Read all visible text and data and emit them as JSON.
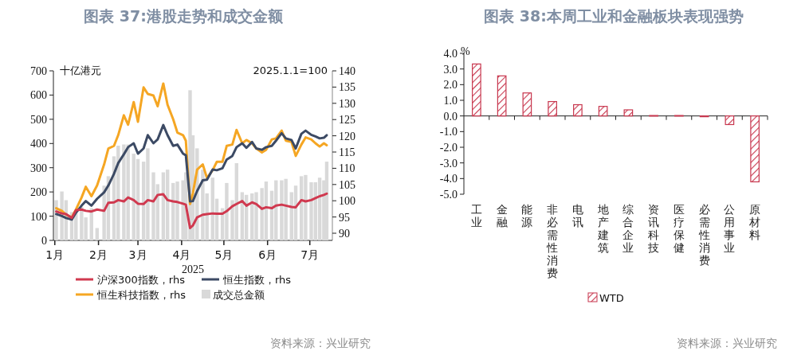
{
  "chart_data": [
    {
      "type": "line",
      "title": "图表 37:港股走势和成交金额",
      "xlabel": "2025",
      "ylabel": "十亿港元",
      "y2label": "2025.1.1=100",
      "x": [
        "2025-01-02",
        "2025-01-06",
        "2025-01-09",
        "2025-01-13",
        "2025-01-16",
        "2025-01-20",
        "2025-01-23",
        "2025-01-27",
        "2025-01-31",
        "2025-02-05",
        "2025-02-08",
        "2025-02-12",
        "2025-02-15",
        "2025-02-19",
        "2025-02-22",
        "2025-02-26",
        "2025-03-01",
        "2025-03-05",
        "2025-03-08",
        "2025-03-12",
        "2025-03-15",
        "2025-03-19",
        "2025-03-22",
        "2025-03-26",
        "2025-03-29",
        "2025-04-02",
        "2025-04-04",
        "2025-04-07",
        "2025-04-09",
        "2025-04-12",
        "2025-04-16",
        "2025-04-19",
        "2025-04-23",
        "2025-04-26",
        "2025-04-30",
        "2025-05-03",
        "2025-05-07",
        "2025-05-10",
        "2025-05-14",
        "2025-05-17",
        "2025-05-21",
        "2025-05-24",
        "2025-05-28",
        "2025-05-31",
        "2025-06-04",
        "2025-06-07",
        "2025-06-11",
        "2025-06-14",
        "2025-06-18",
        "2025-06-21",
        "2025-06-25",
        "2025-06-28",
        "2025-07-02",
        "2025-07-05",
        "2025-07-08",
        "2025-07-11",
        "2025-07-13"
      ],
      "xlim": [
        "2024-12-31",
        "2025-07-17"
      ],
      "xticks": [
        {
          "value": "2025-01-01",
          "label": "1月"
        },
        {
          "value": "2025-02-01",
          "label": "2月"
        },
        {
          "value": "2025-03-01",
          "label": "3月"
        },
        {
          "value": "2025-04-01",
          "label": "4月"
        },
        {
          "value": "2025-05-01",
          "label": "5月"
        },
        {
          "value": "2025-06-01",
          "label": "6月"
        },
        {
          "value": "2025-07-01",
          "label": "7月"
        }
      ],
      "ylim": [
        0,
        700
      ],
      "yticks": [
        0,
        100,
        200,
        300,
        400,
        500,
        600,
        700
      ],
      "y2lim": [
        87.8,
        140
      ],
      "y2ticks": [
        90,
        95,
        100,
        105,
        110,
        115,
        120,
        125,
        130,
        135,
        140
      ],
      "grid": false,
      "legend": "bottom",
      "series": [
        {
          "name": "沪深300指数，rhs",
          "axis": "y2",
          "color": "#d0394f",
          "values": [
            96.7,
            96.1,
            95.9,
            94.7,
            97.1,
            97.3,
            96.9,
            96.7,
            97.3,
            96.9,
            99.4,
            99.5,
            100.2,
            99.8,
            101.0,
            100.2,
            99.1,
            99.0,
            100.2,
            99.8,
            101.8,
            102.0,
            100.2,
            99.8,
            99.6,
            99.1,
            98.8,
            91.6,
            92.4,
            94.9,
            95.7,
            95.9,
            96.1,
            96.0,
            96.0,
            96.8,
            98.3,
            99.0,
            99.9,
            98.5,
            99.5,
            99.0,
            97.5,
            98.0,
            97.7,
            98.5,
            98.8,
            98.5,
            98.1,
            98.0,
            100.2,
            99.8,
            100.2,
            100.8,
            101.4,
            101.8,
            102.2
          ]
        },
        {
          "name": "恒生指数，rhs",
          "axis": "y2",
          "color": "#3c4a64",
          "values": [
            95.9,
            95.3,
            94.7,
            94.2,
            96.3,
            98.5,
            99.9,
            98.5,
            100.6,
            102.6,
            104.7,
            108.3,
            111.6,
            114.3,
            116.5,
            117.7,
            114.5,
            116.1,
            120.2,
            117.7,
            118.9,
            123.3,
            120.2,
            116.9,
            117.3,
            114.5,
            114.0,
            99.8,
            99.9,
            103.0,
            106.3,
            106.5,
            109.6,
            109.4,
            110.0,
            112.7,
            113.8,
            116.5,
            117.7,
            116.3,
            118.1,
            116.1,
            115.7,
            116.5,
            116.9,
            118.5,
            120.8,
            119.2,
            118.7,
            116.1,
            120.6,
            121.6,
            120.3,
            119.8,
            119.2,
            119.4,
            120.2
          ]
        },
        {
          "name": "恒生科技指数，rhs",
          "axis": "y2",
          "color": "#f5a623",
          "values": [
            97.7,
            96.9,
            95.7,
            94.9,
            97.3,
            101.0,
            104.3,
            101.4,
            104.7,
            111.2,
            116.1,
            116.9,
            120.2,
            126.3,
            123.4,
            130.4,
            124.3,
            134.9,
            132.9,
            132.4,
            129.1,
            136.1,
            129.6,
            125.1,
            121.0,
            120.2,
            118.5,
            99.0,
            102.3,
            109.6,
            111.2,
            107.0,
            109.4,
            112.0,
            112.0,
            116.9,
            117.3,
            121.8,
            117.7,
            118.7,
            117.7,
            116.1,
            114.9,
            115.7,
            118.9,
            119.2,
            121.6,
            118.5,
            118.1,
            113.8,
            117.3,
            119.5,
            118.9,
            117.7,
            116.7,
            117.7,
            117.1
          ]
        },
        {
          "name": "成交总金额",
          "type": "bar",
          "color": "#d9d9d9",
          "values": [
            166,
            202,
            166,
            117,
            112,
            139,
            95,
            133,
            51,
            226,
            265,
            347,
            391,
            396,
            396,
            358,
            336,
            325,
            380,
            281,
            232,
            281,
            292,
            237,
            243,
            248,
            281,
            620,
            434,
            380,
            292,
            194,
            259,
            172,
            133,
            237,
            166,
            319,
            199,
            188,
            194,
            199,
            216,
            243,
            205,
            248,
            248,
            254,
            199,
            226,
            265,
            270,
            240,
            240,
            259,
            248,
            325
          ]
        }
      ],
      "annotations": [
        "资料来源：兴业研究"
      ]
    },
    {
      "type": "bar",
      "title": "图表 38:本周工业和金融板块表现强势",
      "ylabel": "%",
      "categories": [
        "工业",
        "金融",
        "能源",
        "非必需性消费",
        "电讯",
        "地产建筑",
        "综合企业",
        "资讯科技",
        "医疗保健",
        "必需性消费",
        "公用事业",
        "原材料"
      ],
      "ylim": [
        -5,
        4
      ],
      "yticks": [
        {
          "value": -5,
          "label": "-5.0"
        },
        {
          "value": -4,
          "label": "-4.0"
        },
        {
          "value": -3,
          "label": "-3.0"
        },
        {
          "value": -2,
          "label": "-2.0"
        },
        {
          "value": -1,
          "label": "-1.0"
        },
        {
          "value": 0,
          "label": "0.0"
        },
        {
          "value": 1,
          "label": "1.0"
        },
        {
          "value": 2,
          "label": "2.0"
        },
        {
          "value": 3,
          "label": "3.0"
        },
        {
          "value": 4,
          "label": "4.0"
        }
      ],
      "legend": "bottom",
      "series": [
        {
          "name": "WTD",
          "color": "#c8374e",
          "values": [
            3.32,
            2.56,
            1.47,
            0.92,
            0.72,
            0.61,
            0.39,
            0.03,
            0.03,
            -0.05,
            -0.55,
            -4.21
          ]
        }
      ],
      "annotations": [
        "资料来源：兴业研究"
      ]
    }
  ]
}
